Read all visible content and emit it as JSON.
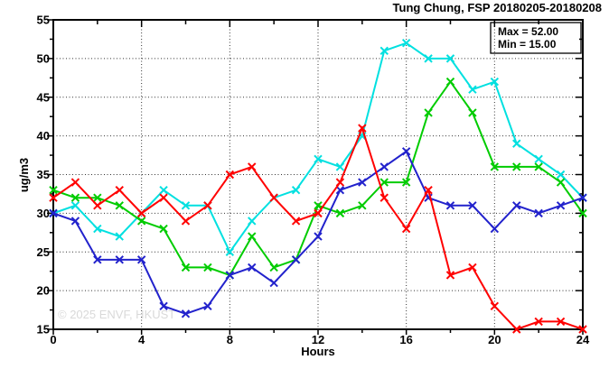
{
  "page": {
    "background": "#ffffff"
  },
  "chart_data": {
    "type": "line",
    "title": "Tung Chung, FSP 20180205-20180208",
    "xlabel": "Hours",
    "ylabel": "ug/m3",
    "watermark": "© 2025 ENVF, HKUST",
    "xlim": [
      0,
      24
    ],
    "ylim": [
      15,
      55
    ],
    "x_major_ticks": [
      0,
      4,
      8,
      12,
      16,
      20,
      24
    ],
    "x_minor_step": 2,
    "y_major_ticks": [
      15,
      20,
      25,
      30,
      35,
      40,
      45,
      50,
      55
    ],
    "y_minor_step": 2.5,
    "grid": "dotted-at-majors",
    "legend_position": "top-right-box",
    "x": [
      0,
      1,
      2,
      3,
      4,
      5,
      6,
      7,
      8,
      9,
      10,
      11,
      12,
      13,
      14,
      15,
      16,
      17,
      18,
      19,
      20,
      21,
      22,
      23,
      24
    ],
    "series": [
      {
        "name": "cyan-series",
        "color": "#00e0e0",
        "values": [
          30,
          31,
          28,
          27,
          30,
          33,
          31,
          31,
          25,
          29,
          32,
          33,
          37,
          36,
          40,
          51,
          52,
          50,
          50,
          46,
          47,
          39,
          37,
          35,
          32
        ]
      },
      {
        "name": "green-series",
        "color": "#00cc00",
        "values": [
          33,
          32,
          32,
          31,
          29,
          28,
          23,
          23,
          22,
          27,
          23,
          24,
          31,
          30,
          31,
          34,
          34,
          43,
          47,
          43,
          36,
          36,
          36,
          34,
          30
        ]
      },
      {
        "name": "blue-series",
        "color": "#2222cc",
        "values": [
          30,
          29,
          24,
          24,
          24,
          18,
          17,
          18,
          22,
          23,
          21,
          24,
          27,
          33,
          34,
          36,
          38,
          32,
          31,
          31,
          28,
          31,
          30,
          31,
          32
        ]
      },
      {
        "name": "red-series",
        "color": "#ff0000",
        "values": [
          32,
          34,
          31,
          33,
          30,
          32,
          29,
          31,
          35,
          36,
          32,
          29,
          30,
          34,
          41,
          32,
          28,
          33,
          22,
          23,
          18,
          15,
          16,
          16,
          15
        ]
      }
    ],
    "legend_box": {
      "max_label": "Max = 52.00",
      "min_label": "Min = 15.00"
    }
  }
}
